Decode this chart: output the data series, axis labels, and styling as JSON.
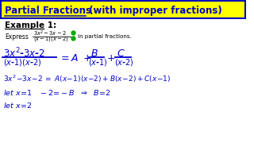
{
  "title_yellow_bg": "#FFFF00",
  "title_border": "#0000BB",
  "title_bold": "Partial Fractions",
  "title_rest": " (with improper fractions)",
  "title_color": "#0000CC",
  "white_bg": "#FFFFFF",
  "blue": "#0000CC",
  "black": "#000000",
  "green": "#00AA00",
  "example_label": "Example 1:",
  "express": "Express",
  "in_partial": "in partial fractions.",
  "line2": "$3x^2-3x-2 = A(x-1)(x-2)+B(x-2)+C(x-1)$",
  "line3": "$let$  $x=1$   $-2=-B$   $\\Rightarrow$   $B=2$",
  "line4": "$let$  $x=2$"
}
